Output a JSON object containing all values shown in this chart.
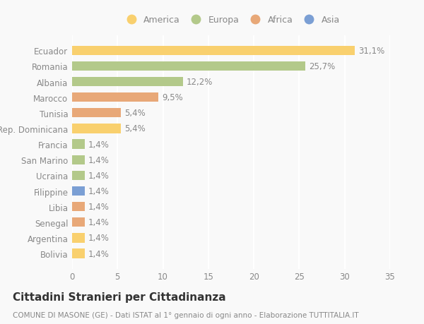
{
  "categories": [
    "Bolivia",
    "Argentina",
    "Senegal",
    "Libia",
    "Filippine",
    "Ucraina",
    "San Marino",
    "Francia",
    "Rep. Dominicana",
    "Tunisia",
    "Marocco",
    "Albania",
    "Romania",
    "Ecuador"
  ],
  "values": [
    1.4,
    1.4,
    1.4,
    1.4,
    1.4,
    1.4,
    1.4,
    1.4,
    5.4,
    5.4,
    9.5,
    12.2,
    25.7,
    31.1
  ],
  "colors": [
    "#f9d06e",
    "#f9d06e",
    "#e8a878",
    "#e8a878",
    "#7b9fd4",
    "#b3c98a",
    "#b3c98a",
    "#b3c98a",
    "#f9d06e",
    "#e8a878",
    "#e8a878",
    "#b3c98a",
    "#b3c98a",
    "#f9d06e"
  ],
  "labels": [
    "1,4%",
    "1,4%",
    "1,4%",
    "1,4%",
    "1,4%",
    "1,4%",
    "1,4%",
    "1,4%",
    "5,4%",
    "5,4%",
    "9,5%",
    "12,2%",
    "25,7%",
    "31,1%"
  ],
  "legend": [
    {
      "label": "America",
      "color": "#f9d06e"
    },
    {
      "label": "Europa",
      "color": "#b3c98a"
    },
    {
      "label": "Africa",
      "color": "#e8a878"
    },
    {
      "label": "Asia",
      "color": "#7b9fd4"
    }
  ],
  "title": "Cittadini Stranieri per Cittadinanza",
  "subtitle": "COMUNE DI MASONE (GE) - Dati ISTAT al 1° gennaio di ogni anno - Elaborazione TUTTITALIA.IT",
  "xlim": [
    0,
    35
  ],
  "xticks": [
    0,
    5,
    10,
    15,
    20,
    25,
    30,
    35
  ],
  "background_color": "#f9f9f9",
  "bar_height": 0.6,
  "label_fontsize": 8.5,
  "tick_fontsize": 8.5,
  "title_fontsize": 11,
  "subtitle_fontsize": 7.5,
  "text_color": "#888888"
}
